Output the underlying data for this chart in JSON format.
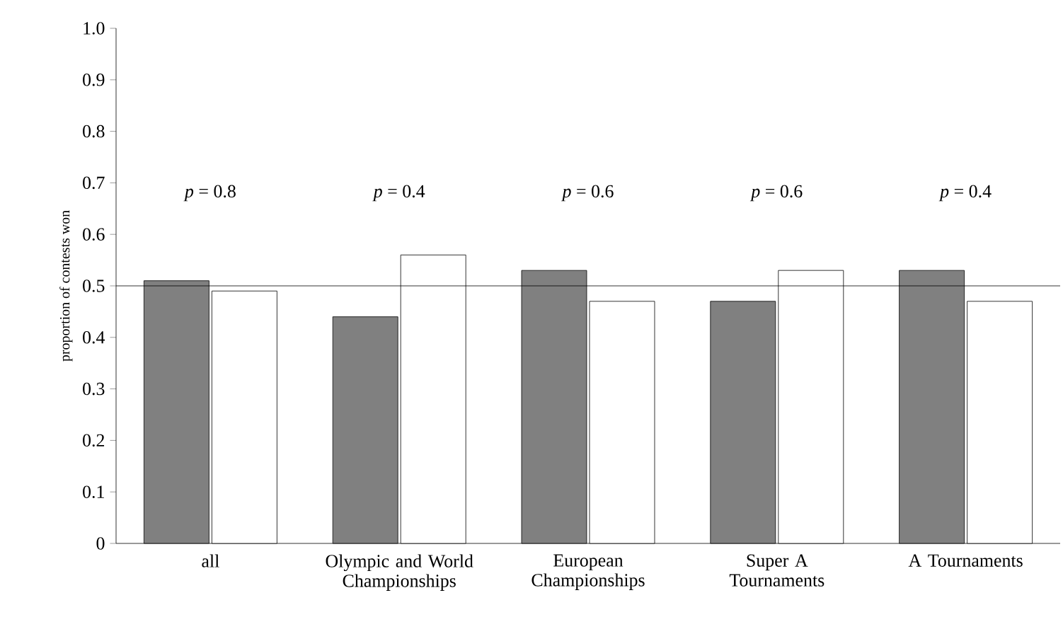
{
  "chart_data": {
    "type": "bar",
    "ylabel": "proportion of contests won",
    "categories": [
      "all",
      "Olympic and World Championships",
      "European Championships",
      "Super A Tournaments",
      "A Tournaments"
    ],
    "series": [
      {
        "color": "#808080",
        "values": [
          0.51,
          0.44,
          0.53,
          0.47,
          0.53
        ]
      },
      {
        "color": "#ffffff",
        "values": [
          0.49,
          0.56,
          0.47,
          0.53,
          0.47
        ]
      }
    ],
    "ylim": [
      0,
      1.0
    ],
    "yticks": [
      0,
      0.1,
      0.2,
      0.3,
      0.4,
      0.5,
      0.6,
      0.7,
      0.8,
      0.9,
      {
        "value": 1.0,
        "label": "1.0"
      }
    ],
    "ref_lines": [
      {
        "axis": "y",
        "value": 0.5,
        "color": "#000000"
      }
    ],
    "annotations": [
      "*p* = 0.8",
      "*p* = 0.4",
      "*p* = 0.6",
      "*p* = 0.6",
      "*p* = 0.4"
    ],
    "grid": false
  }
}
